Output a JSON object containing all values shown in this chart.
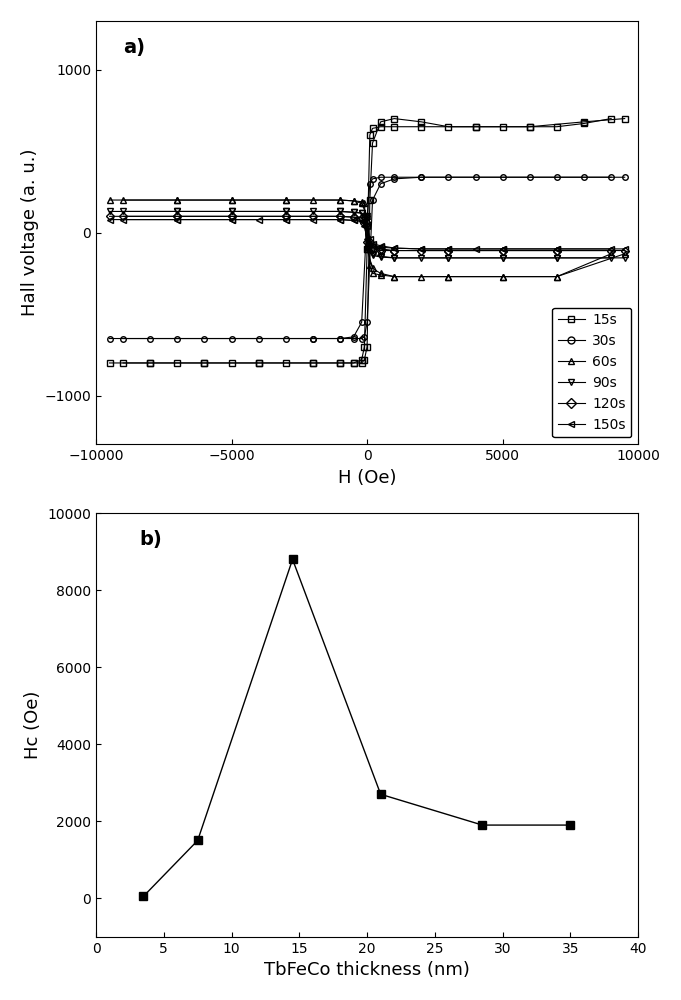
{
  "panel_a": {
    "title": "a)",
    "xlabel": "H (Oe)",
    "ylabel": "Hall voltage (a. u.)",
    "xlim": [
      -10000,
      10000
    ],
    "ylim": [
      -1300,
      1300
    ],
    "series": [
      {
        "label": "15s",
        "marker": "s",
        "H_neg": [
          -9500,
          -8000,
          -6000,
          -4000,
          -2000,
          -1000,
          -500,
          -200,
          -100,
          0,
          100,
          200,
          500,
          1000,
          2000,
          3000,
          4000,
          5000,
          6000,
          7000,
          8000,
          9000
        ],
        "V_neg": [
          -800,
          -800,
          -800,
          -800,
          -800,
          -800,
          -800,
          -800,
          -780,
          -700,
          200,
          550,
          680,
          700,
          680,
          650,
          650,
          650,
          650,
          650,
          670,
          700
        ],
        "H_pos": [
          9500,
          8000,
          6000,
          4000,
          2000,
          1000,
          500,
          200,
          100,
          0,
          -100,
          -200,
          -500,
          -1000,
          -2000,
          -3000,
          -4000,
          -5000,
          -6000,
          -7000,
          -8000,
          -9000
        ],
        "V_pos": [
          700,
          680,
          650,
          650,
          650,
          650,
          650,
          640,
          600,
          -100,
          -700,
          -780,
          -800,
          -800,
          -800,
          -800,
          -800,
          -800,
          -800,
          -800,
          -800,
          -800
        ]
      },
      {
        "label": "30s",
        "marker": "o",
        "H_neg": [
          -9500,
          -8000,
          -6000,
          -4000,
          -2000,
          -1000,
          -500,
          -200,
          -100,
          0,
          200,
          500,
          1000,
          2000,
          3000,
          5000,
          7000,
          9000
        ],
        "V_neg": [
          -650,
          -650,
          -650,
          -650,
          -650,
          -650,
          -650,
          -650,
          -640,
          -550,
          200,
          300,
          330,
          340,
          340,
          340,
          340,
          340
        ],
        "H_pos": [
          9500,
          8000,
          6000,
          4000,
          2000,
          1000,
          500,
          200,
          100,
          0,
          -200,
          -500,
          -1000,
          -2000,
          -3000,
          -5000,
          -7000,
          -9000
        ],
        "V_pos": [
          340,
          340,
          340,
          340,
          340,
          340,
          340,
          330,
          300,
          100,
          -550,
          -640,
          -650,
          -650,
          -650,
          -650,
          -650,
          -650
        ]
      },
      {
        "label": "60s",
        "marker": "^",
        "H_neg": [
          -9500,
          -7000,
          -5000,
          -3000,
          -1000,
          -500,
          -200,
          -100,
          0,
          200,
          500,
          1000,
          2000,
          3000,
          5000,
          7000,
          9000
        ],
        "V_neg": [
          200,
          200,
          200,
          200,
          200,
          195,
          190,
          180,
          -100,
          -220,
          -250,
          -270,
          -270,
          -270,
          -270,
          -270,
          -130
        ],
        "H_pos": [
          9500,
          7000,
          5000,
          3000,
          1000,
          500,
          200,
          100,
          0,
          -200,
          -500,
          -1000,
          -2000,
          -3000,
          -5000,
          -7000,
          -9000
        ],
        "V_pos": [
          -130,
          -270,
          -270,
          -270,
          -270,
          -260,
          -250,
          -200,
          100,
          180,
          195,
          200,
          200,
          200,
          200,
          200,
          200
        ]
      },
      {
        "label": "90s",
        "marker": "v",
        "H_neg": [
          -9500,
          -7000,
          -5000,
          -3000,
          -1000,
          -500,
          -200,
          -100,
          0,
          200,
          500,
          1000,
          2000,
          3000,
          5000,
          7000,
          9000
        ],
        "V_neg": [
          130,
          130,
          130,
          130,
          130,
          125,
          120,
          80,
          -100,
          -140,
          -150,
          -155,
          -155,
          -155,
          -155,
          -155,
          -155
        ],
        "H_pos": [
          9500,
          7000,
          5000,
          3000,
          1000,
          500,
          200,
          100,
          0,
          -200,
          -500,
          -1000,
          -2000,
          -3000,
          -5000,
          -7000,
          -9000
        ],
        "V_pos": [
          -155,
          -155,
          -155,
          -155,
          -155,
          -145,
          -130,
          -80,
          100,
          120,
          125,
          130,
          130,
          130,
          130,
          130,
          130
        ]
      },
      {
        "label": "120s",
        "marker": "D",
        "H_neg": [
          -9500,
          -7000,
          -5000,
          -3000,
          -1000,
          -500,
          -200,
          -100,
          0,
          200,
          500,
          1000,
          2000,
          3000,
          5000,
          7000,
          9000
        ],
        "V_neg": [
          100,
          100,
          100,
          100,
          100,
          95,
          90,
          60,
          -60,
          -100,
          -110,
          -110,
          -110,
          -110,
          -110,
          -110,
          -110
        ],
        "H_pos": [
          9500,
          7000,
          5000,
          3000,
          1000,
          500,
          200,
          100,
          0,
          -200,
          -500,
          -1000,
          -2000,
          -3000,
          -5000,
          -7000,
          -9000
        ],
        "V_pos": [
          -110,
          -110,
          -110,
          -110,
          -110,
          -100,
          -90,
          -60,
          60,
          90,
          95,
          100,
          100,
          100,
          100,
          100,
          100
        ]
      },
      {
        "label": "150s",
        "marker": "<",
        "H_neg": [
          -9500,
          -7000,
          -5000,
          -3000,
          -1000,
          -500,
          -200,
          -100,
          0,
          200,
          500,
          1000,
          2000,
          3000,
          4000,
          5000,
          7000,
          9000
        ],
        "V_neg": [
          80,
          80,
          80,
          80,
          80,
          75,
          70,
          40,
          -40,
          -80,
          -90,
          -95,
          -100,
          -100,
          -100,
          -100,
          -100,
          -100
        ],
        "H_pos": [
          9500,
          7000,
          5000,
          3000,
          2000,
          1000,
          500,
          200,
          100,
          0,
          -200,
          -500,
          -1000,
          -2000,
          -3000,
          -4000,
          -5000,
          -7000,
          -9000
        ],
        "V_pos": [
          -100,
          -100,
          -100,
          -100,
          -100,
          -95,
          -80,
          -70,
          -40,
          40,
          70,
          75,
          80,
          80,
          80,
          80,
          80,
          80,
          80
        ]
      }
    ]
  },
  "panel_b": {
    "title": "b)",
    "xlabel": "TbFeCo thickness (nm)",
    "ylabel": "Hc (Oe)",
    "xlim": [
      0,
      40
    ],
    "ylim": [
      -1000,
      10000
    ],
    "x": [
      3.5,
      7.5,
      14.5,
      21,
      28.5,
      35
    ],
    "y": [
      50,
      1500,
      8800,
      2700,
      1900,
      1900
    ],
    "marker": "s",
    "color": "#000000"
  },
  "figure_bg": "#ffffff"
}
